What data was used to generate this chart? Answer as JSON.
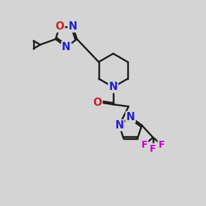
{
  "bg_color": "#d4d4d4",
  "bond_color": "#1a1a1a",
  "N_color": "#2020cc",
  "O_color": "#cc2020",
  "F_color": "#cc00cc",
  "bond_width": 1.8,
  "font_size": 11,
  "fig_w": 3.0,
  "fig_h": 3.0,
  "dpi": 100,
  "xlim": [
    0,
    10
  ],
  "ylim": [
    0,
    10
  ]
}
